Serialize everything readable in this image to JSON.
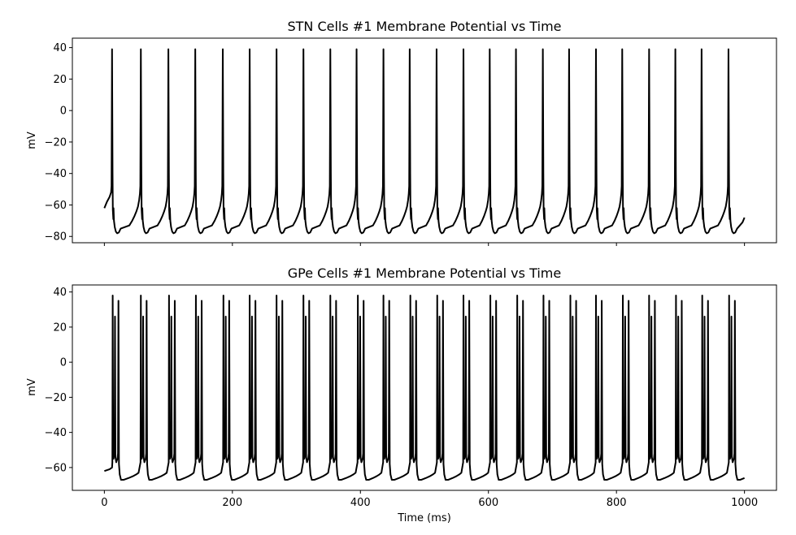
{
  "chart_data": [
    {
      "type": "line",
      "title": "STN Cells #1 Membrane Potential vs Time",
      "ylabel": "mV",
      "xlabel": "",
      "xlim": [
        -50,
        1050
      ],
      "ylim": [
        -84,
        46
      ],
      "xticks": [
        0,
        200,
        400,
        600,
        800,
        1000
      ],
      "show_xticklabels": false,
      "yticks": [
        40,
        20,
        0,
        -20,
        -40,
        -60,
        -80
      ],
      "ytick_labels": [
        "40",
        "20",
        "0",
        "−20",
        "−40",
        "−60",
        "−80"
      ],
      "grid": false,
      "line_color": "#000000",
      "series": [
        {
          "spike_times": [
            12,
            57,
            100,
            142,
            185,
            227,
            269,
            311,
            353,
            394,
            436,
            477,
            519,
            561,
            602,
            643,
            685,
            726,
            768,
            809,
            851,
            892,
            933,
            975
          ],
          "spike_peak": 39,
          "trough": -78,
          "start_value": -62,
          "end_value": -68,
          "x_range": [
            0,
            1000
          ]
        }
      ]
    },
    {
      "type": "line",
      "title": "GPe Cells #1 Membrane Potential vs Time",
      "ylabel": "mV",
      "xlabel": "Time (ms)",
      "xlim": [
        -50,
        1050
      ],
      "ylim": [
        -73,
        44
      ],
      "xticks": [
        0,
        200,
        400,
        600,
        800,
        1000
      ],
      "xtick_labels": [
        "0",
        "200",
        "400",
        "600",
        "800",
        "1000"
      ],
      "yticks": [
        40,
        20,
        0,
        -20,
        -40,
        -60
      ],
      "ytick_labels": [
        "40",
        "20",
        "0",
        "−20",
        "−40",
        "−60"
      ],
      "grid": false,
      "line_color": "#000000",
      "series": [
        {
          "burst_times": [
            13,
            57,
            101,
            143,
            186,
            227,
            269,
            311,
            353,
            396,
            436,
            478,
            520,
            561,
            603,
            645,
            686,
            728,
            768,
            810,
            851,
            893,
            934,
            976
          ],
          "burst_spike_peaks": [
            38,
            26,
            35
          ],
          "trough": -67,
          "start_value": -62,
          "end_value": -66,
          "x_range": [
            0,
            1000
          ]
        }
      ]
    }
  ]
}
